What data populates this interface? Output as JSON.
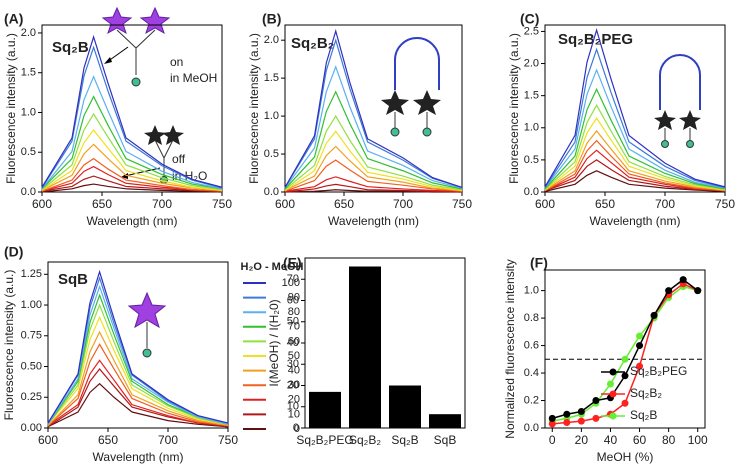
{
  "chart_data": [
    {
      "type": "line",
      "panel_label": "(A)",
      "compound": "Sq₂B",
      "annotations": [
        "on",
        "in MeOH",
        "off",
        "in H₂O"
      ],
      "xlabel": "Wavelength (nm)",
      "ylabel": "Fluorescence intensity (a.u.)",
      "x": [
        600,
        625,
        635,
        643,
        655,
        670,
        700,
        725,
        750
      ],
      "xlim": [
        600,
        750
      ],
      "xticks": [
        600,
        650,
        700,
        750
      ],
      "ylim": [
        0,
        2.1
      ],
      "yticks": [
        {
          "value": 0,
          "label": "0.0"
        },
        0.5,
        {
          "value": 1,
          "label": "1.0"
        },
        1.5,
        {
          "value": 2,
          "label": "2.0"
        }
      ],
      "series": [
        {
          "color": "#3030c0",
          "values": [
            0.06,
            0.68,
            1.56,
            1.95,
            1.37,
            0.68,
            0.35,
            0.16,
            0.06
          ]
        },
        {
          "color": "#3a7ad8",
          "values": [
            0.05,
            0.64,
            1.46,
            1.82,
            1.27,
            0.64,
            0.33,
            0.15,
            0.05
          ]
        },
        {
          "color": "#5ab0f0",
          "values": [
            0.04,
            0.51,
            1.16,
            1.45,
            1.02,
            0.51,
            0.26,
            0.12,
            0.04
          ]
        },
        {
          "color": "#30c030",
          "values": [
            0.04,
            0.42,
            0.96,
            1.2,
            0.84,
            0.42,
            0.22,
            0.1,
            0.04
          ]
        },
        {
          "color": "#90e040",
          "values": [
            0.03,
            0.34,
            0.78,
            0.98,
            0.69,
            0.34,
            0.18,
            0.08,
            0.03
          ]
        },
        {
          "color": "#f0e020",
          "values": [
            0.02,
            0.27,
            0.62,
            0.78,
            0.55,
            0.27,
            0.14,
            0.06,
            0.02
          ]
        },
        {
          "color": "#f0a020",
          "values": [
            0.02,
            0.21,
            0.48,
            0.6,
            0.42,
            0.21,
            0.11,
            0.05,
            0.02
          ]
        },
        {
          "color": "#f06020",
          "values": [
            0.01,
            0.15,
            0.34,
            0.42,
            0.29,
            0.15,
            0.08,
            0.03,
            0.01
          ]
        },
        {
          "color": "#e02020",
          "values": [
            0.01,
            0.11,
            0.26,
            0.32,
            0.22,
            0.11,
            0.06,
            0.03,
            0.01
          ]
        },
        {
          "color": "#b01818",
          "values": [
            0.01,
            0.07,
            0.16,
            0.2,
            0.14,
            0.07,
            0.04,
            0.02,
            0.01
          ]
        },
        {
          "color": "#601010",
          "values": [
            0,
            0.04,
            0.08,
            0.1,
            0.07,
            0.04,
            0.02,
            0.01,
            0
          ]
        }
      ]
    },
    {
      "type": "line",
      "panel_label": "(B)",
      "compound": "Sq₂B₂",
      "xlabel": "Wavelength (nm)",
      "ylabel": "Fluorescence intensity (a.u.)",
      "x": [
        600,
        625,
        635,
        643,
        655,
        670,
        700,
        725,
        750
      ],
      "xlim": [
        600,
        750
      ],
      "xticks": [
        600,
        650,
        700,
        750
      ],
      "ylim": [
        0,
        2.2
      ],
      "yticks": [
        {
          "value": 0,
          "label": "0.0"
        },
        0.5,
        {
          "value": 1,
          "label": "1.0"
        },
        1.5,
        {
          "value": 2,
          "label": "2.0"
        }
      ],
      "series": [
        {
          "color": "#3030c0",
          "values": [
            0.06,
            0.74,
            1.7,
            2.12,
            1.44,
            0.7,
            0.45,
            0.19,
            0.06
          ]
        },
        {
          "color": "#3a7ad8",
          "values": [
            0.06,
            0.7,
            1.6,
            2.0,
            1.36,
            0.66,
            0.42,
            0.18,
            0.06
          ]
        },
        {
          "color": "#5ab0f0",
          "values": [
            0.05,
            0.58,
            1.32,
            1.65,
            1.12,
            0.54,
            0.35,
            0.15,
            0.05
          ]
        },
        {
          "color": "#30c030",
          "values": [
            0.04,
            0.46,
            1.06,
            1.32,
            0.9,
            0.44,
            0.28,
            0.12,
            0.04
          ]
        },
        {
          "color": "#90e040",
          "values": [
            0.03,
            0.35,
            0.8,
            1.0,
            0.68,
            0.33,
            0.21,
            0.09,
            0.03
          ]
        },
        {
          "color": "#f0e020",
          "values": [
            0.02,
            0.28,
            0.64,
            0.8,
            0.54,
            0.26,
            0.17,
            0.07,
            0.02
          ]
        },
        {
          "color": "#f0a020",
          "values": [
            0.02,
            0.21,
            0.48,
            0.6,
            0.41,
            0.2,
            0.13,
            0.05,
            0.02
          ]
        },
        {
          "color": "#f06020",
          "values": [
            0.01,
            0.15,
            0.34,
            0.42,
            0.29,
            0.14,
            0.09,
            0.04,
            0.01
          ]
        },
        {
          "color": "#e02020",
          "values": [
            0.01,
            0.07,
            0.16,
            0.2,
            0.14,
            0.07,
            0.04,
            0.02,
            0.01
          ]
        },
        {
          "color": "#b01818",
          "values": [
            0,
            0.04,
            0.08,
            0.1,
            0.07,
            0.03,
            0.02,
            0.01,
            0
          ]
        },
        {
          "color": "#601010",
          "values": [
            0,
            0.01,
            0.02,
            0.03,
            0.02,
            0.01,
            0.01,
            0,
            0
          ]
        }
      ]
    },
    {
      "type": "line",
      "panel_label": "(C)",
      "compound": "Sq₂B₂PEG",
      "xlabel": "Wavelength (nm)",
      "ylabel": "Fluorescence intensity (a.u.)",
      "x": [
        600,
        625,
        635,
        643,
        655,
        670,
        700,
        725,
        750
      ],
      "xlim": [
        600,
        750
      ],
      "xticks": [
        600,
        650,
        700,
        750
      ],
      "ylim": [
        0,
        2.6
      ],
      "yticks": [
        {
          "value": 0,
          "label": "0.0"
        },
        0.5,
        {
          "value": 1,
          "label": "1.0"
        },
        1.5,
        {
          "value": 2,
          "label": "2.0"
        },
        2.5
      ],
      "series": [
        {
          "color": "#3030c0",
          "values": [
            0.08,
            0.88,
            2.02,
            2.52,
            1.76,
            0.88,
            0.45,
            0.2,
            0.08
          ]
        },
        {
          "color": "#3a7ad8",
          "values": [
            0.07,
            0.78,
            1.78,
            2.22,
            1.55,
            0.78,
            0.4,
            0.18,
            0.07
          ]
        },
        {
          "color": "#5ab0f0",
          "values": [
            0.06,
            0.67,
            1.52,
            1.9,
            1.33,
            0.67,
            0.34,
            0.15,
            0.06
          ]
        },
        {
          "color": "#30c030",
          "values": [
            0.05,
            0.56,
            1.28,
            1.6,
            1.12,
            0.56,
            0.29,
            0.13,
            0.05
          ]
        },
        {
          "color": "#90e040",
          "values": [
            0.04,
            0.47,
            1.08,
            1.35,
            0.95,
            0.47,
            0.24,
            0.11,
            0.04
          ]
        },
        {
          "color": "#f0e020",
          "values": [
            0.03,
            0.4,
            0.92,
            1.15,
            0.81,
            0.4,
            0.21,
            0.09,
            0.03
          ]
        },
        {
          "color": "#f0a020",
          "values": [
            0.03,
            0.33,
            0.76,
            0.95,
            0.67,
            0.33,
            0.17,
            0.08,
            0.03
          ]
        },
        {
          "color": "#f06020",
          "values": [
            0.02,
            0.28,
            0.64,
            0.8,
            0.56,
            0.28,
            0.14,
            0.06,
            0.02
          ]
        },
        {
          "color": "#e02020",
          "values": [
            0.02,
            0.23,
            0.52,
            0.65,
            0.46,
            0.23,
            0.12,
            0.05,
            0.02
          ]
        },
        {
          "color": "#b01818",
          "values": [
            0.02,
            0.18,
            0.4,
            0.5,
            0.35,
            0.18,
            0.09,
            0.04,
            0.02
          ]
        },
        {
          "color": "#601010",
          "values": [
            0.01,
            0.12,
            0.26,
            0.33,
            0.23,
            0.12,
            0.06,
            0.03,
            0.01
          ]
        }
      ]
    },
    {
      "type": "line",
      "panel_label": "(D)",
      "compound": "SqB",
      "legend_title": "H₂O - MeOH",
      "legend": "right-outside",
      "xlabel": "Wavelength (nm)",
      "ylabel": "Fluorescence intensity (a.u.)",
      "x": [
        600,
        625,
        635,
        643,
        655,
        670,
        700,
        725,
        750
      ],
      "xlim": [
        600,
        750
      ],
      "xticks": [
        600,
        650,
        700,
        750
      ],
      "ylim": [
        0,
        1.35
      ],
      "yticks": [
        {
          "value": 0,
          "label": "0.00"
        },
        0.25,
        {
          "value": 0.5,
          "label": "0.50"
        },
        0.75,
        {
          "value": 1,
          "label": "1.00"
        },
        1.25
      ],
      "series": [
        {
          "name": "100",
          "color": "#3030c0",
          "values": [
            0.04,
            0.44,
            1.02,
            1.27,
            0.89,
            0.44,
            0.23,
            0.1,
            0.04
          ]
        },
        {
          "name": "90",
          "color": "#3a7ad8",
          "values": [
            0.04,
            0.43,
            0.98,
            1.22,
            0.85,
            0.43,
            0.22,
            0.1,
            0.04
          ]
        },
        {
          "name": "80",
          "color": "#5ab0f0",
          "values": [
            0.03,
            0.4,
            0.92,
            1.15,
            0.81,
            0.4,
            0.21,
            0.09,
            0.03
          ]
        },
        {
          "name": "70",
          "color": "#30c030",
          "values": [
            0.03,
            0.38,
            0.86,
            1.08,
            0.76,
            0.38,
            0.19,
            0.09,
            0.03
          ]
        },
        {
          "name": "60",
          "color": "#90e040",
          "values": [
            0.03,
            0.35,
            0.8,
            1.0,
            0.7,
            0.35,
            0.18,
            0.08,
            0.03
          ]
        },
        {
          "name": "50",
          "color": "#f0e020",
          "values": [
            0.03,
            0.32,
            0.72,
            0.9,
            0.63,
            0.32,
            0.16,
            0.07,
            0.03
          ]
        },
        {
          "name": "40",
          "color": "#f0a020",
          "values": [
            0.02,
            0.27,
            0.62,
            0.78,
            0.55,
            0.27,
            0.14,
            0.06,
            0.02
          ]
        },
        {
          "name": "30",
          "color": "#f06020",
          "values": [
            0.02,
            0.24,
            0.54,
            0.68,
            0.48,
            0.24,
            0.12,
            0.05,
            0.02
          ]
        },
        {
          "name": "20",
          "color": "#e02020",
          "values": [
            0.02,
            0.19,
            0.44,
            0.55,
            0.39,
            0.19,
            0.1,
            0.04,
            0.02
          ]
        },
        {
          "name": "10",
          "color": "#b01818",
          "values": [
            0.01,
            0.17,
            0.38,
            0.48,
            0.34,
            0.17,
            0.09,
            0.04,
            0.01
          ]
        },
        {
          "name": "0",
          "color": "#601010",
          "values": [
            0.01,
            0.13,
            0.29,
            0.36,
            0.25,
            0.13,
            0.06,
            0.03,
            0.01
          ]
        }
      ]
    },
    {
      "type": "bar",
      "panel_label": "(E)",
      "ylabel": "I(MeOH) / I(H₂0)",
      "color": "#000000",
      "categories": [
        "Sq₂B₂PEG",
        "Sq₂B₂",
        "Sq₂B",
        "SqB"
      ],
      "values": [
        17,
        76,
        20,
        6.5
      ],
      "ylim": [
        0,
        80
      ],
      "yticks": [
        0,
        10,
        20,
        30,
        40,
        50,
        60,
        70
      ]
    },
    {
      "type": "line",
      "panel_label": "(F)",
      "markers": true,
      "legend": "lower right",
      "reference_line": 0.5,
      "xlabel": "MeOH (%)",
      "ylabel": "Normalized fluorescence intensity",
      "x": [
        0,
        10,
        20,
        30,
        40,
        50,
        60,
        70,
        80,
        90,
        100
      ],
      "xlim": [
        -5,
        105
      ],
      "xticks": [
        0,
        20,
        40,
        60,
        80,
        100
      ],
      "ylim": [
        0,
        1.15
      ],
      "yticks": [
        {
          "value": 0,
          "label": "0.0"
        },
        0.2,
        0.4,
        0.6,
        0.8,
        {
          "value": 1,
          "label": "1.0"
        }
      ],
      "series": [
        {
          "name": "Sq₂B₂PEG",
          "color": "#000000",
          "values": [
            0.07,
            0.1,
            0.12,
            0.2,
            0.22,
            0.38,
            0.6,
            0.82,
            1.0,
            1.08,
            1.0
          ]
        },
        {
          "name": "Sq₂B₂",
          "color": "#ff2020",
          "values": [
            0.03,
            0.04,
            0.05,
            0.07,
            0.1,
            0.18,
            0.45,
            0.82,
            0.97,
            1.05,
            1.0
          ]
        },
        {
          "name": "Sq₂B",
          "color": "#66ee33",
          "values": [
            0.05,
            0.07,
            0.1,
            0.18,
            0.32,
            0.5,
            0.67,
            0.8,
            0.95,
            1.03,
            1.0
          ]
        }
      ]
    }
  ]
}
